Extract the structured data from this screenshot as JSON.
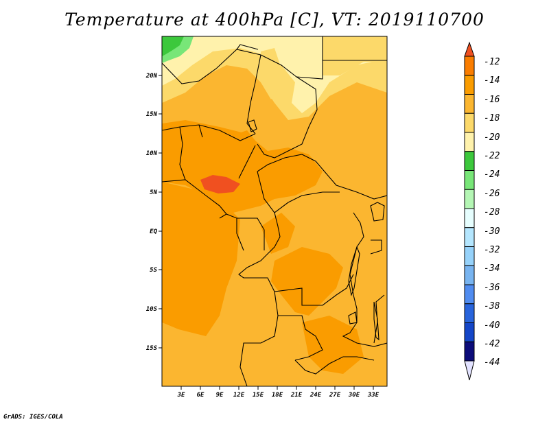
{
  "title": "Temperature at 400hPa [C], VT: 2019110700",
  "footer": "GrADS: IGES/COLA",
  "map": {
    "region": "Central Africa",
    "lat_labels": [
      "20N",
      "15N",
      "10N",
      "5N",
      "EQ",
      "5S",
      "10S",
      "15S"
    ],
    "lon_labels": [
      "3E",
      "6E",
      "9E",
      "12E",
      "15E",
      "18E",
      "21E",
      "24E",
      "27E",
      "30E",
      "33E"
    ]
  },
  "colorbar": {
    "labels": [
      "-12",
      "-14",
      "-16",
      "-18",
      "-20",
      "-22",
      "-24",
      "-26",
      "-28",
      "-30",
      "-32",
      "-34",
      "-36",
      "-38",
      "-40",
      "-42",
      "-44"
    ],
    "colors": [
      "#f05020",
      "#fa7d00",
      "#fa9c00",
      "#fbb630",
      "#fcd96a",
      "#fff2ac",
      "#3cc83c",
      "#78e678",
      "#b4f6b4",
      "#e6fefe",
      "#b4e6fe",
      "#96d2fa",
      "#78b4f0",
      "#508cf0",
      "#2864dc",
      "#1446c8",
      "#0c0c7a",
      "#e2e2ff"
    ]
  }
}
